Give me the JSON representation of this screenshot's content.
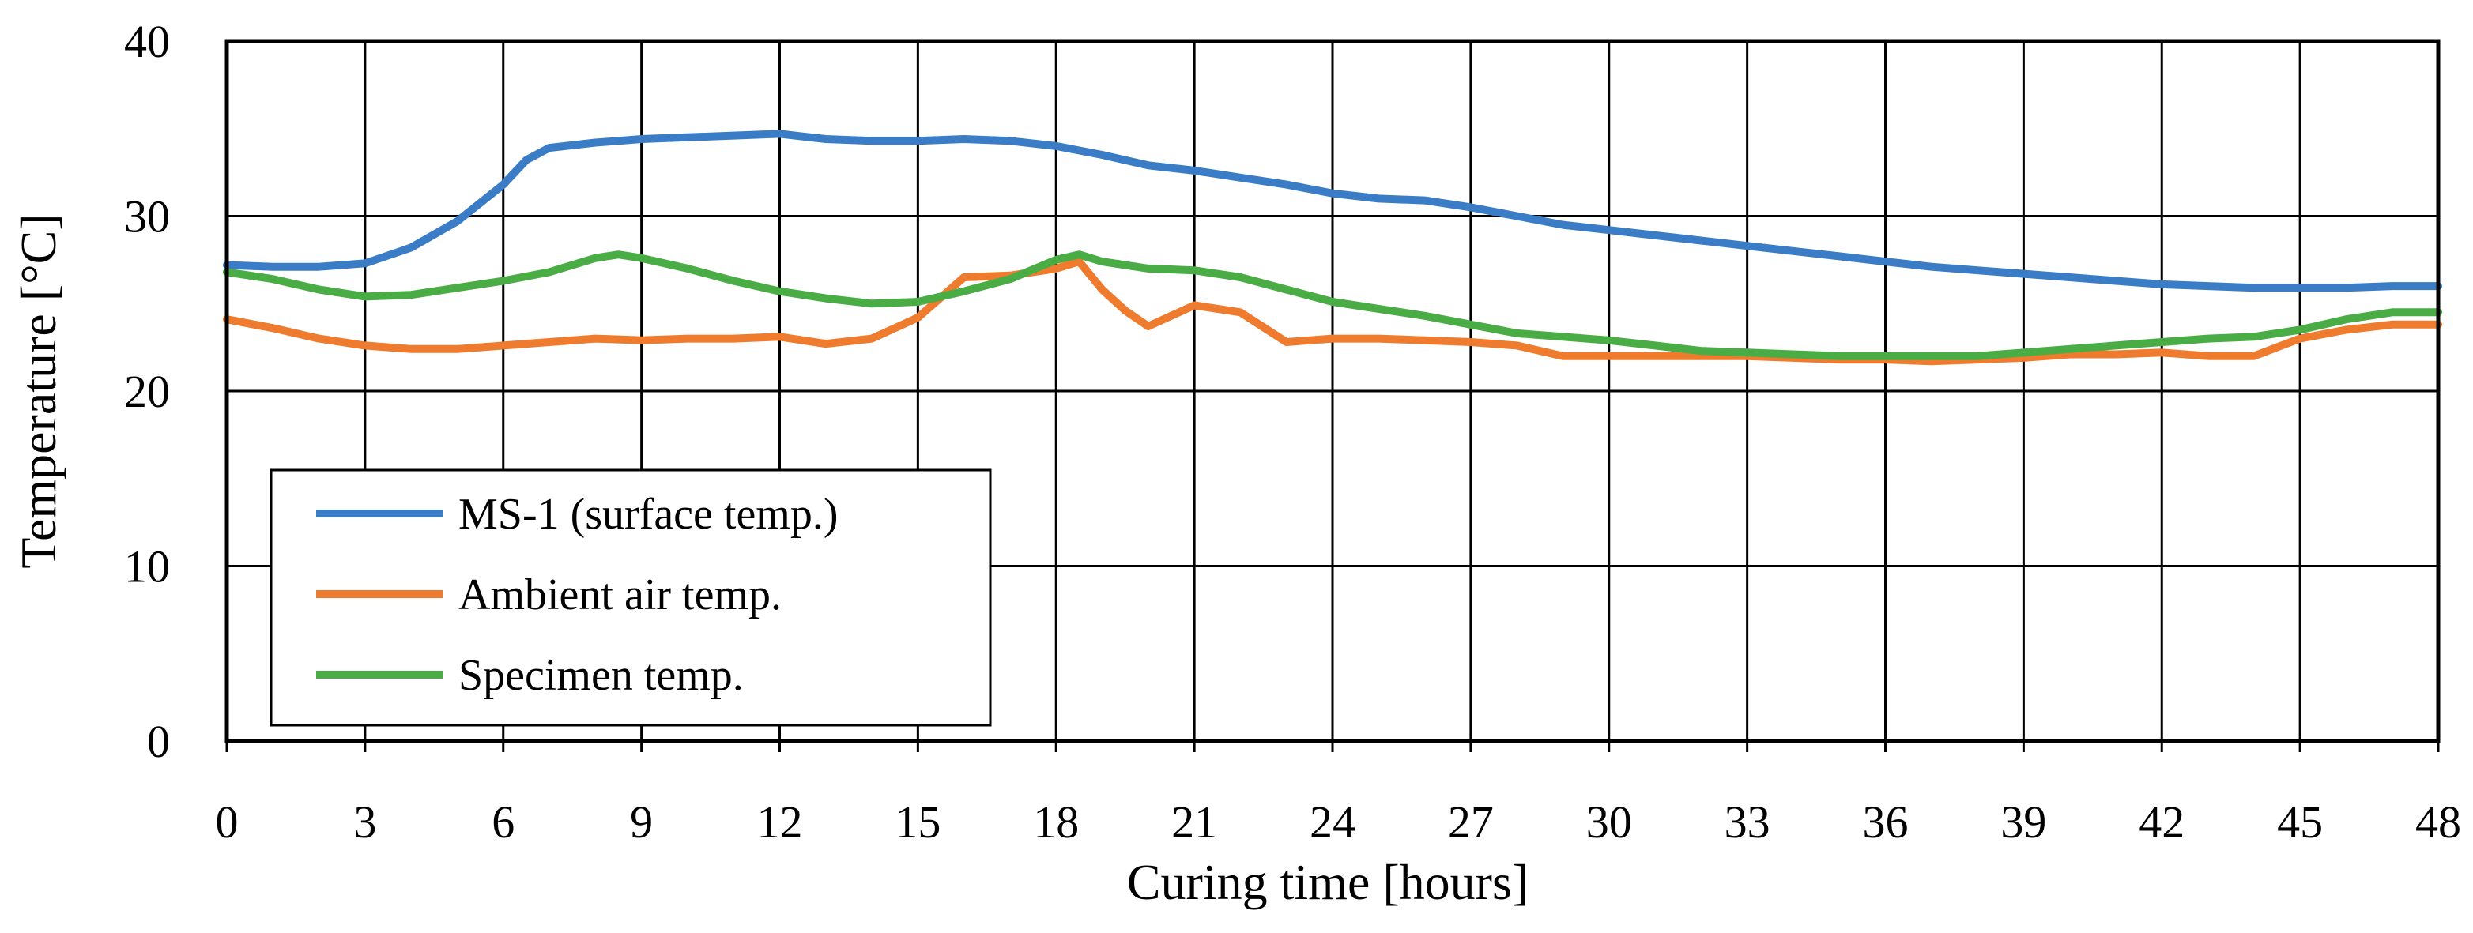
{
  "chart_data": {
    "type": "line",
    "xlabel": "Curing time [hours]",
    "ylabel": "Temperature [°C]",
    "xlim": [
      0,
      48
    ],
    "ylim": [
      0,
      40
    ],
    "xticks": [
      0,
      3,
      6,
      9,
      12,
      15,
      18,
      21,
      24,
      27,
      30,
      33,
      36,
      39,
      42,
      45,
      48
    ],
    "yticks": [
      0,
      10,
      20,
      30,
      40
    ],
    "grid": true,
    "legend_position": "bottom-left",
    "series": [
      {
        "name": "MS-1 (surface temp.)",
        "color": "#3a7cc6",
        "x": [
          0,
          1,
          2,
          3,
          4,
          5,
          6,
          6.5,
          7,
          8,
          9,
          10,
          11,
          12,
          13,
          14,
          15,
          16,
          17,
          18,
          19,
          20,
          21,
          22,
          23,
          24,
          25,
          26,
          27,
          28,
          29,
          30,
          31,
          32,
          33,
          34,
          35,
          36,
          37,
          38,
          39,
          40,
          41,
          42,
          43,
          44,
          45,
          46,
          47,
          48
        ],
        "y": [
          27.2,
          27.1,
          27.1,
          27.3,
          28.2,
          29.7,
          31.8,
          33.2,
          33.9,
          34.2,
          34.4,
          34.5,
          34.6,
          34.7,
          34.4,
          34.3,
          34.3,
          34.4,
          34.3,
          34.0,
          33.5,
          32.9,
          32.6,
          32.2,
          31.8,
          31.3,
          31.0,
          30.9,
          30.5,
          30.0,
          29.5,
          29.2,
          28.9,
          28.6,
          28.3,
          28.0,
          27.7,
          27.4,
          27.1,
          26.9,
          26.7,
          26.5,
          26.3,
          26.1,
          26.0,
          25.9,
          25.9,
          25.9,
          26.0,
          26.0
        ]
      },
      {
        "name": "Ambient air temp.",
        "color": "#ef7b2f",
        "x": [
          0,
          1,
          2,
          3,
          4,
          5,
          6,
          7,
          8,
          9,
          10,
          11,
          12,
          13,
          14,
          15,
          16,
          17,
          18,
          18.5,
          19,
          19.5,
          20,
          21,
          22,
          23,
          24,
          25,
          26,
          27,
          28,
          29,
          30,
          31,
          32,
          33,
          34,
          35,
          36,
          37,
          38,
          39,
          40,
          41,
          42,
          43,
          44,
          45,
          46,
          47,
          48
        ],
        "y": [
          24.1,
          23.6,
          23.0,
          22.6,
          22.4,
          22.4,
          22.6,
          22.8,
          23.0,
          22.9,
          23.0,
          23.0,
          23.1,
          22.7,
          23.0,
          24.2,
          26.5,
          26.6,
          27.0,
          27.4,
          25.8,
          24.6,
          23.7,
          24.9,
          24.5,
          22.8,
          23.0,
          23.0,
          22.9,
          22.8,
          22.6,
          22.0,
          22.0,
          22.0,
          22.0,
          22.0,
          21.9,
          21.8,
          21.8,
          21.7,
          21.8,
          21.9,
          22.1,
          22.1,
          22.2,
          22.0,
          22.0,
          23.0,
          23.5,
          23.8,
          23.8
        ]
      },
      {
        "name": "Specimen temp.",
        "color": "#4aac45",
        "x": [
          0,
          1,
          2,
          3,
          4,
          5,
          6,
          7,
          8,
          8.5,
          9,
          10,
          11,
          12,
          13,
          14,
          15,
          16,
          17,
          18,
          18.5,
          19,
          20,
          21,
          22,
          23,
          24,
          25,
          26,
          27,
          28,
          29,
          30,
          31,
          32,
          33,
          34,
          35,
          36,
          37,
          38,
          39,
          40,
          41,
          42,
          43,
          44,
          45,
          46,
          47,
          48
        ],
        "y": [
          26.8,
          26.4,
          25.8,
          25.4,
          25.5,
          25.9,
          26.3,
          26.8,
          27.6,
          27.8,
          27.6,
          27.0,
          26.3,
          25.7,
          25.3,
          25.0,
          25.1,
          25.7,
          26.4,
          27.5,
          27.8,
          27.4,
          27.0,
          26.9,
          26.5,
          25.8,
          25.1,
          24.7,
          24.3,
          23.8,
          23.3,
          23.1,
          22.9,
          22.6,
          22.3,
          22.2,
          22.1,
          22.0,
          22.0,
          22.0,
          22.0,
          22.2,
          22.4,
          22.6,
          22.8,
          23.0,
          23.1,
          23.5,
          24.1,
          24.5,
          24.5
        ]
      }
    ]
  }
}
